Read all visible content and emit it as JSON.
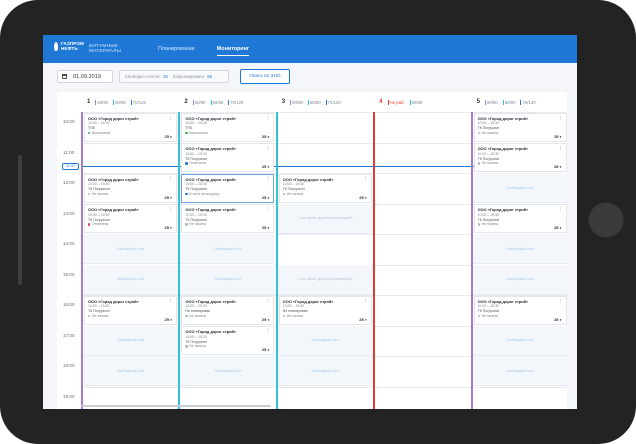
{
  "header": {
    "logo_text": [
      "ГАЗПРОМ",
      "НЕФТЬ"
    ],
    "app_title": [
      "БИТУМНЫЕ",
      "МАТЕРИАЛЫ"
    ],
    "nav": [
      {
        "label": "Планирование",
        "active": false
      },
      {
        "label": "Мониторинг",
        "active": true
      }
    ]
  },
  "toolbar": {
    "date": "01.09.2019",
    "free_slots_label": "Свободно слотов:",
    "free_slots_value": "26",
    "booked_label": "Забронировано:",
    "booked_value": "66",
    "search_button": "Поиск по ЗНО"
  },
  "colors": {
    "accent": "#1f78d6",
    "purple": "#a77bd1",
    "teal": "#33c1d8",
    "red": "#e53935",
    "green": "#37b24d"
  },
  "times": [
    "10:00",
    "11:00",
    "12:00",
    "13:00",
    "14:00",
    "15:00",
    "16:00",
    "17:00",
    "18:00",
    "19:00"
  ],
  "now_label": "11:47",
  "days": [
    {
      "num": "1",
      "chips": [
        {
          "text": "60/90",
          "color": "#a77bd1"
        },
        {
          "text": "60/90",
          "color": "#33c1d8"
        },
        {
          "text": "70/120",
          "color": "#1f78d6"
        }
      ],
      "border": "#a77bd1",
      "red": false
    },
    {
      "num": "2",
      "chips": [
        {
          "text": "60/90",
          "color": "#a77bd1"
        },
        {
          "text": "60/90",
          "color": "#33c1d8"
        },
        {
          "text": "70/120",
          "color": "#1f78d6"
        }
      ],
      "border": "#33c1d8",
      "red": false
    },
    {
      "num": "3",
      "chips": [
        {
          "text": "60/90",
          "color": "#a77bd1"
        },
        {
          "text": "60/90",
          "color": "#33c1d8"
        },
        {
          "text": "70/120",
          "color": "#1f78d6"
        }
      ],
      "border": "#33c1d8",
      "red": false
    },
    {
      "num": "4",
      "chips": [
        {
          "text": "Не раб.",
          "color": "#e53935"
        },
        {
          "text": "60/90",
          "color": "#33c1d8"
        }
      ],
      "border": "#e53935",
      "red": true
    },
    {
      "num": "5",
      "chips": [
        {
          "text": "60/90",
          "color": "#a77bd1"
        },
        {
          "text": "60/90",
          "color": "#33c1d8"
        },
        {
          "text": "70/120",
          "color": "#1f78d6"
        }
      ],
      "border": "#a77bd1",
      "red": false
    }
  ],
  "labels": {
    "free_slot": "Свободный слот",
    "other_org_slot": "Слот занят другой организацией"
  },
  "columns": [
    {
      "cards": [
        {
          "slot": 0,
          "title": "ООО «Город дорог строй»",
          "time": "10:00 – 15:30",
          "place": "ТПК",
          "status": "Выполнена",
          "dot": "#37b24d",
          "qty": "25 т"
        },
        {
          "slot": 2,
          "title": "ООО «Город дорог строй»",
          "time": "10:00 – 15:30",
          "place": "ТК Погрузочн",
          "status": "Не начата",
          "dot": "#b0b6bf",
          "qty": "25 т"
        },
        {
          "slot": 3,
          "title": "ООО «Город дорог строй»",
          "time": "10:00 – 15:30",
          "place": "ТК Погрузочн",
          "status": "Отменена",
          "dot": "#e53935",
          "qty": "25 т"
        },
        {
          "slot": 6,
          "title": "ООО «Город дорог строй»",
          "time": "10:00 – 15:30",
          "place": "ТК Погрузочн",
          "status": "Не начата",
          "dot": "#b0b6bf",
          "qty": "25 т"
        }
      ],
      "free": [
        4,
        5,
        7,
        8
      ]
    },
    {
      "cards": [
        {
          "slot": 0,
          "title": "ООО «Город дорог строй»",
          "time": "10:00 – 15:30",
          "place": "ТПК",
          "status": "Выполнена",
          "dot": "#37b24d",
          "qty": "25 т"
        },
        {
          "slot": 1,
          "title": "ООО «Город дорог строй»",
          "time": "10:00 – 15:30",
          "place": "ТК Погрузочн",
          "status": "Отменена",
          "dot": "#1f78d6",
          "qty": "25 т"
        },
        {
          "slot": 2,
          "title": "ООО «Город дорог строй»",
          "time": "10:00 – 15:30",
          "place": "ТК Погрузочн",
          "status": "В пути на погрузку",
          "dot": "#1f78d6",
          "qty": "25 т",
          "hi": true
        },
        {
          "slot": 3,
          "title": "ООО «Город дорог строй»",
          "time": "10:00 – 15:30",
          "place": "ТК Погрузочн",
          "status": "Не начата",
          "dot": "#b0b6bf",
          "qty": "25 т"
        },
        {
          "slot": 6,
          "title": "ООО «Город дорог строй»",
          "time": "10:00 – 15:30",
          "place": "Не планирован",
          "status": "Не начата",
          "dot": "#b0b6bf",
          "qty": "25 т"
        },
        {
          "slot": 7,
          "title": "ООО «Город дорог строй»",
          "time": "10:00 – 15:30",
          "place": "ТК Погрузочн",
          "status": "Не начата",
          "dot": "#b0b6bf",
          "qty": "25 т"
        }
      ],
      "free": [
        4,
        5,
        8
      ]
    },
    {
      "cards": [
        {
          "slot": 2,
          "title": "ООО «Город дорог строй»",
          "time": "10:00 – 15:30",
          "place": "ТК Погрузочн",
          "status": "Не начата",
          "dot": "#b0b6bf",
          "qty": "25 т"
        },
        {
          "slot": 6,
          "title": "ООО «Город дорог строй»",
          "time": "10:00 – 15:30",
          "place": "Не планирован",
          "status": "Не начата",
          "dot": "#b0b6bf",
          "qty": "25 т"
        }
      ],
      "free": [
        7,
        8
      ],
      "other": [
        3,
        5
      ],
      "empty": [
        0,
        1,
        4
      ]
    },
    {
      "cards": [],
      "free": [],
      "empty": [
        0,
        1,
        2,
        3,
        4,
        5,
        6,
        7,
        8
      ]
    },
    {
      "cards": [
        {
          "slot": 0,
          "title": "ООО «Город дорог строй»",
          "time": "10:00 – 15:30",
          "place": "ТК Погрузочн",
          "status": "Не начата",
          "dot": "#b0b6bf",
          "qty": "25 т"
        },
        {
          "slot": 1,
          "title": "ООО «Город дорог строй»",
          "time": "10:00 – 15:30",
          "place": "ТК Погрузочн",
          "status": "Не начата",
          "dot": "#b0b6bf",
          "qty": "25 т"
        },
        {
          "slot": 3,
          "title": "ООО «Город дорог строй»",
          "time": "10:00 – 15:30",
          "place": "ТК Погрузочн",
          "status": "Не начата",
          "dot": "#b0b6bf",
          "qty": "25 т"
        },
        {
          "slot": 6,
          "title": "ООО «Город дорог строй»",
          "time": "10:00 – 15:30",
          "place": "ТК Погрузочн",
          "status": "Не начата",
          "dot": "#b0b6bf",
          "qty": "25 т"
        }
      ],
      "free": [
        2,
        4,
        5,
        7,
        8
      ]
    }
  ]
}
